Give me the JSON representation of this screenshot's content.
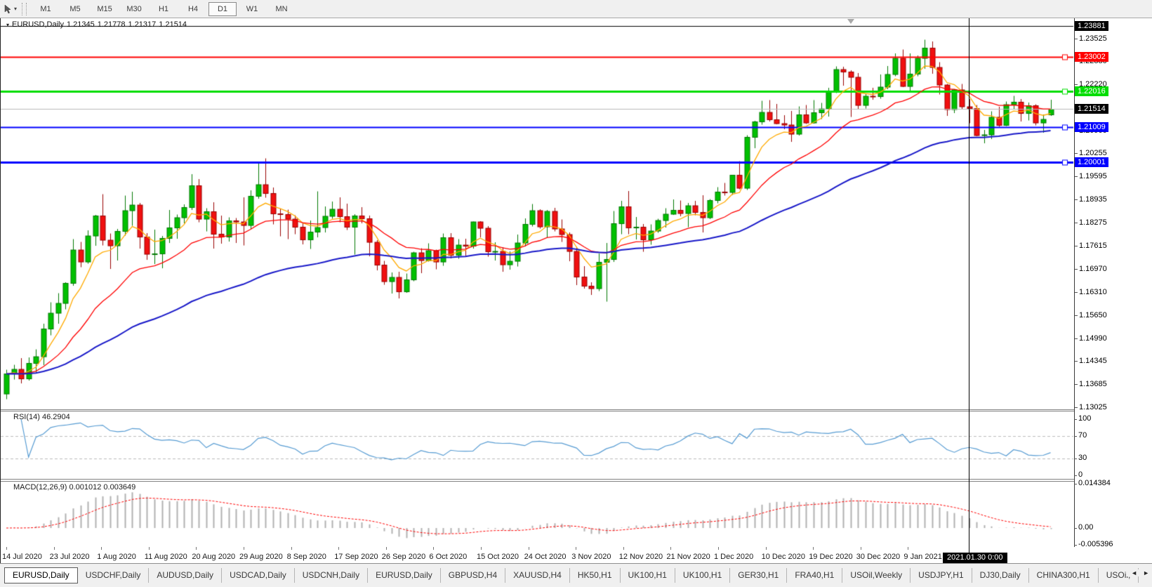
{
  "toolbar": {
    "tool_icon": "chart-cursor-icon",
    "dropdown_icon": "caret-down-icon",
    "timeframes": [
      "M1",
      "M5",
      "M15",
      "M30",
      "H1",
      "H4",
      "D1",
      "W1",
      "MN"
    ],
    "active_timeframe": "D1"
  },
  "chart": {
    "title": {
      "symbol": "EURUSD,Daily",
      "open": "1.21345",
      "high": "1.21778",
      "low": "1.21317",
      "close": "1.21514"
    },
    "price_axis_ticks": [
      "1.23525",
      "1.22880",
      "1.22220",
      "1.21560",
      "1.20900",
      "1.20255",
      "1.19595",
      "1.18935",
      "1.18275",
      "1.17615",
      "1.16970",
      "1.16310",
      "1.15650",
      "1.14990",
      "1.14345",
      "1.13685",
      "1.13025"
    ],
    "levels": [
      {
        "label": "1.23881",
        "price": 1.23881,
        "color": "#000000",
        "width": 1,
        "marker": false
      },
      {
        "label": "1.23002",
        "price": 1.23002,
        "color": "#ff0000",
        "width": 2,
        "marker": true
      },
      {
        "label": "1.22016",
        "price": 1.22016,
        "color": "#00dd00",
        "width": 3,
        "marker": true
      },
      {
        "label": "1.21009",
        "price": 1.21009,
        "color": "#0000ff",
        "width": 2,
        "marker": true
      },
      {
        "label": "1.20001",
        "price": 1.20001,
        "color": "#0000ff",
        "width": 3,
        "marker": true
      }
    ],
    "current_price": {
      "label": "1.21514",
      "price": 1.21514,
      "line_color": "#b8b8b8",
      "bg": "#000000"
    },
    "date_labels": [
      "14 Jul 2020",
      "23 Jul 2020",
      "1 Aug 2020",
      "11 Aug 2020",
      "20 Aug 2020",
      "29 Aug 2020",
      "8 Sep 2020",
      "17 Sep 2020",
      "26 Sep 2020",
      "6 Oct 2020",
      "15 Oct 2020",
      "24 Oct 2020",
      "3 Nov 2020",
      "12 Nov 2020",
      "21 Nov 2020",
      "1 Dec 2020",
      "10 Dec 2020",
      "19 Dec 2020",
      "30 Dec 2020",
      "9 Jan 2021"
    ],
    "crosshair_date": "2021.01.30 0:00"
  },
  "rsi_panel": {
    "label": "RSI(14) 46.2904",
    "axis": [
      "100",
      "70",
      "30",
      "0"
    ],
    "line_color": "#569bd2"
  },
  "macd_panel": {
    "label": "MACD(12,26,9) 0.001012 0.003649",
    "axis": [
      "0.014384",
      "0.00",
      "-0.005396"
    ],
    "hist_color": "#b2b2b2",
    "signal_color": "#ff0000"
  },
  "chart_data": {
    "type": "candlestick",
    "symbol": "EURUSD",
    "timeframe": "Daily",
    "x_range": [
      "14 Jul 2020",
      "29 Jan 2021"
    ],
    "y_range": [
      1.1285,
      1.2412
    ],
    "up_color": "#00c000",
    "down_color": "#f01010",
    "overlays": [
      {
        "name": "ma-fast",
        "period": 6,
        "color": "#ffaa00"
      },
      {
        "name": "ma-mid",
        "period": 18,
        "color": "#ff0000"
      },
      {
        "name": "ma-slow",
        "period": 55,
        "color": "#1818c8"
      }
    ],
    "indicators": [
      {
        "name": "RSI",
        "period": 14,
        "value": 46.2904
      },
      {
        "name": "MACD",
        "fast": 12,
        "slow": 26,
        "signal": 9,
        "values": [
          0.001012,
          0.003649
        ]
      }
    ],
    "candles": [
      [
        1.134,
        1.1409,
        1.1325,
        1.1397
      ],
      [
        1.1397,
        1.1423,
        1.1381,
        1.141
      ],
      [
        1.141,
        1.1442,
        1.137,
        1.1383
      ],
      [
        1.1383,
        1.1444,
        1.1378,
        1.1427
      ],
      [
        1.1427,
        1.1467,
        1.1401,
        1.1446
      ],
      [
        1.1446,
        1.154,
        1.1422,
        1.1525
      ],
      [
        1.1525,
        1.1601,
        1.1507,
        1.157
      ],
      [
        1.157,
        1.1627,
        1.154,
        1.1598
      ],
      [
        1.1598,
        1.1658,
        1.1581,
        1.1655
      ],
      [
        1.1655,
        1.1781,
        1.1648,
        1.175
      ],
      [
        1.175,
        1.1773,
        1.1701,
        1.1716
      ],
      [
        1.1716,
        1.1806,
        1.1711,
        1.179
      ],
      [
        1.179,
        1.185,
        1.1762,
        1.1847
      ],
      [
        1.1847,
        1.1909,
        1.1763,
        1.1778
      ],
      [
        1.1778,
        1.1797,
        1.1696,
        1.1762
      ],
      [
        1.1762,
        1.181,
        1.172,
        1.1803
      ],
      [
        1.1803,
        1.1905,
        1.1791,
        1.1862
      ],
      [
        1.1862,
        1.1916,
        1.1819,
        1.1878
      ],
      [
        1.1878,
        1.1884,
        1.1754,
        1.1787
      ],
      [
        1.1787,
        1.1798,
        1.1722,
        1.1738
      ],
      [
        1.1738,
        1.1808,
        1.171,
        1.1739
      ],
      [
        1.1739,
        1.179,
        1.1698,
        1.1783
      ],
      [
        1.1783,
        1.1864,
        1.177,
        1.1813
      ],
      [
        1.1813,
        1.1851,
        1.1782,
        1.1842
      ],
      [
        1.1842,
        1.188,
        1.1826,
        1.1871
      ],
      [
        1.1871,
        1.1966,
        1.1864,
        1.1933
      ],
      [
        1.1933,
        1.1952,
        1.1829,
        1.1838
      ],
      [
        1.1838,
        1.1869,
        1.1803,
        1.1859
      ],
      [
        1.1859,
        1.1886,
        1.1754,
        1.1795
      ],
      [
        1.1795,
        1.1848,
        1.1768,
        1.1787
      ],
      [
        1.1787,
        1.1843,
        1.1774,
        1.1833
      ],
      [
        1.1833,
        1.1841,
        1.177,
        1.183
      ],
      [
        1.183,
        1.19,
        1.1763,
        1.182
      ],
      [
        1.182,
        1.192,
        1.181,
        1.1903
      ],
      [
        1.1903,
        1.1997,
        1.1896,
        1.1936
      ],
      [
        1.1936,
        1.2011,
        1.1899,
        1.1911
      ],
      [
        1.1911,
        1.1928,
        1.1823,
        1.1853
      ],
      [
        1.1853,
        1.1868,
        1.1789,
        1.1851
      ],
      [
        1.1851,
        1.1865,
        1.1781,
        1.1838
      ],
      [
        1.1838,
        1.1849,
        1.1795,
        1.1815
      ],
      [
        1.1815,
        1.1827,
        1.1766,
        1.1779
      ],
      [
        1.1779,
        1.1834,
        1.1753,
        1.1801
      ],
      [
        1.1801,
        1.1917,
        1.1786,
        1.1814
      ],
      [
        1.1814,
        1.1874,
        1.18,
        1.1846
      ],
      [
        1.1846,
        1.1888,
        1.1839,
        1.1866
      ],
      [
        1.1866,
        1.19,
        1.1829,
        1.1845
      ],
      [
        1.1845,
        1.1882,
        1.1807,
        1.1815
      ],
      [
        1.1815,
        1.1852,
        1.1737,
        1.1847
      ],
      [
        1.1847,
        1.1872,
        1.1826,
        1.1839
      ],
      [
        1.1839,
        1.1848,
        1.1732,
        1.1772
      ],
      [
        1.1772,
        1.1778,
        1.1692,
        1.1707
      ],
      [
        1.1707,
        1.1719,
        1.1651,
        1.166
      ],
      [
        1.166,
        1.1686,
        1.1626,
        1.1672
      ],
      [
        1.1672,
        1.1688,
        1.1612,
        1.1631
      ],
      [
        1.1631,
        1.1683,
        1.1628,
        1.1665
      ],
      [
        1.1665,
        1.1745,
        1.1661,
        1.1742
      ],
      [
        1.1742,
        1.1755,
        1.1684,
        1.172
      ],
      [
        1.172,
        1.1769,
        1.1717,
        1.1748
      ],
      [
        1.1748,
        1.1751,
        1.1695,
        1.1716
      ],
      [
        1.1716,
        1.1797,
        1.1705,
        1.1785
      ],
      [
        1.1785,
        1.1798,
        1.1726,
        1.1735
      ],
      [
        1.1735,
        1.1781,
        1.1725,
        1.1764
      ],
      [
        1.1764,
        1.1782,
        1.1733,
        1.1761
      ],
      [
        1.1761,
        1.1831,
        1.1754,
        1.183
      ],
      [
        1.183,
        1.1832,
        1.1786,
        1.1812
      ],
      [
        1.1812,
        1.1818,
        1.1731,
        1.1745
      ],
      [
        1.1745,
        1.1772,
        1.172,
        1.1746
      ],
      [
        1.1746,
        1.1758,
        1.1688,
        1.1708
      ],
      [
        1.1708,
        1.1746,
        1.1694,
        1.1718
      ],
      [
        1.1718,
        1.1794,
        1.1703,
        1.177
      ],
      [
        1.177,
        1.184,
        1.176,
        1.1823
      ],
      [
        1.1823,
        1.1881,
        1.1817,
        1.1862
      ],
      [
        1.1862,
        1.1866,
        1.1811,
        1.1816
      ],
      [
        1.1816,
        1.1864,
        1.1786,
        1.186
      ],
      [
        1.186,
        1.187,
        1.1803,
        1.181
      ],
      [
        1.181,
        1.1837,
        1.1773,
        1.1794
      ],
      [
        1.1794,
        1.18,
        1.1718,
        1.1746
      ],
      [
        1.1746,
        1.1759,
        1.165,
        1.1673
      ],
      [
        1.1673,
        1.1704,
        1.164,
        1.1647
      ],
      [
        1.1647,
        1.1658,
        1.1622,
        1.164
      ],
      [
        1.164,
        1.174,
        1.1633,
        1.1715
      ],
      [
        1.1715,
        1.177,
        1.1603,
        1.1723
      ],
      [
        1.1723,
        1.1861,
        1.1716,
        1.1825
      ],
      [
        1.1825,
        1.189,
        1.1795,
        1.1873
      ],
      [
        1.1873,
        1.1918,
        1.1795,
        1.1813
      ],
      [
        1.1813,
        1.1844,
        1.178,
        1.1815
      ],
      [
        1.1815,
        1.1824,
        1.1745,
        1.1779
      ],
      [
        1.1779,
        1.1823,
        1.1765,
        1.1804
      ],
      [
        1.1804,
        1.1839,
        1.1799,
        1.1834
      ],
      [
        1.1834,
        1.1869,
        1.1814,
        1.1852
      ],
      [
        1.1852,
        1.1894,
        1.185,
        1.1863
      ],
      [
        1.1863,
        1.1891,
        1.1846,
        1.1854
      ],
      [
        1.1854,
        1.1884,
        1.1815,
        1.1876
      ],
      [
        1.1876,
        1.189,
        1.1849,
        1.1857
      ],
      [
        1.1857,
        1.1906,
        1.18,
        1.1842
      ],
      [
        1.1842,
        1.1895,
        1.1838,
        1.1891
      ],
      [
        1.1891,
        1.1929,
        1.1883,
        1.1915
      ],
      [
        1.1915,
        1.1941,
        1.1905,
        1.1914
      ],
      [
        1.1914,
        1.1964,
        1.1907,
        1.1963
      ],
      [
        1.1963,
        1.2003,
        1.1923,
        1.1926
      ],
      [
        1.1926,
        1.2077,
        1.1921,
        1.2071
      ],
      [
        1.2071,
        1.2118,
        1.204,
        1.2115
      ],
      [
        1.2115,
        1.2175,
        1.2107,
        1.2142
      ],
      [
        1.2142,
        1.2177,
        1.2116,
        1.2121
      ],
      [
        1.2121,
        1.2166,
        1.2108,
        1.211
      ],
      [
        1.211,
        1.2134,
        1.2094,
        1.2106
      ],
      [
        1.2106,
        1.2146,
        1.2058,
        1.208
      ],
      [
        1.208,
        1.2159,
        1.2076,
        1.2135
      ],
      [
        1.2135,
        1.2163,
        1.2109,
        1.2112
      ],
      [
        1.2112,
        1.2177,
        1.211,
        1.2141
      ],
      [
        1.2141,
        1.2169,
        1.2123,
        1.2152
      ],
      [
        1.2152,
        1.2212,
        1.213,
        1.22
      ],
      [
        1.22,
        1.2273,
        1.2197,
        1.2264
      ],
      [
        1.2264,
        1.2272,
        1.2218,
        1.2257
      ],
      [
        1.2257,
        1.2262,
        1.2129,
        1.2242
      ],
      [
        1.2242,
        1.2254,
        1.2151,
        1.2162
      ],
      [
        1.2162,
        1.2196,
        1.2153,
        1.2188
      ],
      [
        1.2188,
        1.2212,
        1.2178,
        1.2187
      ],
      [
        1.2187,
        1.225,
        1.2181,
        1.2214
      ],
      [
        1.2214,
        1.2274,
        1.2208,
        1.225
      ],
      [
        1.225,
        1.231,
        1.2245,
        1.2296
      ],
      [
        1.2296,
        1.2321,
        1.2214,
        1.2216
      ],
      [
        1.2216,
        1.231,
        1.22,
        1.2251
      ],
      [
        1.2251,
        1.2304,
        1.2245,
        1.2296
      ],
      [
        1.2296,
        1.2349,
        1.2266,
        1.2325
      ],
      [
        1.2325,
        1.2344,
        1.2252,
        1.227
      ],
      [
        1.227,
        1.2285,
        1.2193,
        1.222
      ],
      [
        1.222,
        1.2223,
        1.2132,
        1.215
      ],
      [
        1.215,
        1.2208,
        1.214,
        1.2206
      ],
      [
        1.2206,
        1.2223,
        1.2152,
        1.2158
      ],
      [
        1.2158,
        1.218,
        1.2111,
        1.2153
      ],
      [
        1.2153,
        1.2163,
        1.2074,
        1.2076
      ],
      [
        1.2076,
        1.2092,
        1.2054,
        1.2078
      ],
      [
        1.2078,
        1.2145,
        1.2066,
        1.2128
      ],
      [
        1.2128,
        1.2158,
        1.2101,
        1.2105
      ],
      [
        1.2105,
        1.2173,
        1.2103,
        1.2164
      ],
      [
        1.2164,
        1.2189,
        1.2152,
        1.2171
      ],
      [
        1.2171,
        1.218,
        1.2116,
        1.2139
      ],
      [
        1.2139,
        1.217,
        1.2119,
        1.2161
      ],
      [
        1.2161,
        1.2165,
        1.2105,
        1.2112
      ],
      [
        1.2112,
        1.2136,
        1.2084,
        1.2122
      ],
      [
        1.2135,
        1.2178,
        1.2132,
        1.2151
      ]
    ]
  },
  "tabbar": {
    "tabs": [
      {
        "label": "EURUSD,Daily",
        "active": true
      },
      {
        "label": "USDCHF,Daily"
      },
      {
        "label": "AUDUSD,Daily"
      },
      {
        "label": "USDCAD,Daily"
      },
      {
        "label": "USDCNH,Daily"
      },
      {
        "label": "EURUSD,Daily"
      },
      {
        "label": "GBPUSD,H4"
      },
      {
        "label": "XAUUSD,H4"
      },
      {
        "label": "HK50,H1"
      },
      {
        "label": "UK100,H1"
      },
      {
        "label": "UK100,H1"
      },
      {
        "label": "GER30,H1"
      },
      {
        "label": "FRA40,H1"
      },
      {
        "label": "USOil,Weekly"
      },
      {
        "label": "USDJPY,H1"
      },
      {
        "label": "DJ30,Daily"
      },
      {
        "label": "CHINA300,H1"
      },
      {
        "label": "USOil,"
      }
    ],
    "scroll_left": "◄",
    "scroll_right": "►"
  }
}
